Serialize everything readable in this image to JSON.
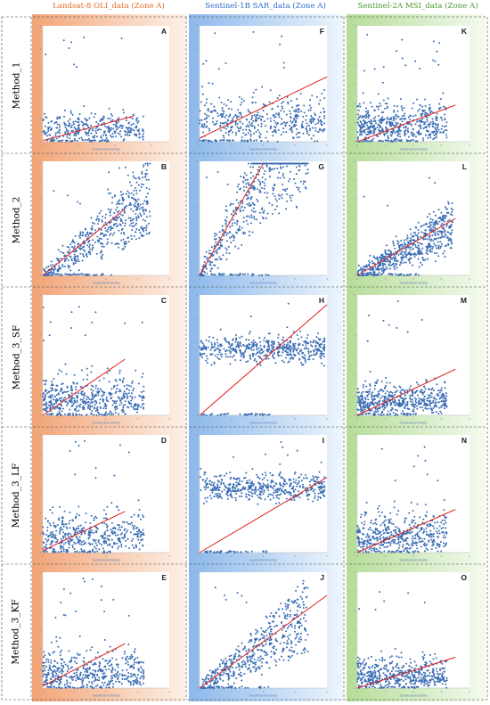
{
  "columns": [
    {
      "title": "Landsat-8 OLI_data (Zone A)",
      "color": "#e36c2c"
    },
    {
      "title": "Sentinel-1B SAR_data (Zone A)",
      "color": "#2f6fcc"
    },
    {
      "title": "Sentinel-2A MSI_data (Zone A)",
      "color": "#4b9a34"
    }
  ],
  "rows": [
    "Method_1",
    "Method_2",
    "Method_3_SF",
    "Method_3_LF",
    "Method_3_KF"
  ],
  "chart_data": [
    {
      "letter": "A",
      "type": "scatter",
      "xlabel": "Geostructural Density",
      "seed": 1,
      "n": 330,
      "xmax": 3.5,
      "ymax": 5.0,
      "mode": "lowcloud",
      "fit": [
        [
          0,
          0.05
        ],
        [
          2.5,
          1.1
        ]
      ]
    },
    {
      "letter": "B",
      "type": "scatter",
      "xlabel": "Geostructural Density",
      "seed": 2,
      "n": 520,
      "xmax": 4.0,
      "ymax": 6.0,
      "mode": "wedge",
      "fit": [
        [
          0,
          0.0
        ],
        [
          2.6,
          3.5
        ]
      ]
    },
    {
      "letter": "C",
      "type": "scatter",
      "xlabel": "Geostructural Density",
      "seed": 3,
      "n": 480,
      "xmax": 4.0,
      "ymax": 6.0,
      "mode": "cloud",
      "fit": [
        [
          0,
          0.0
        ],
        [
          2.6,
          2.8
        ]
      ]
    },
    {
      "letter": "D",
      "type": "scatter",
      "xlabel": "Geostructural Density",
      "seed": 4,
      "n": 430,
      "xmax": 4.0,
      "ymax": 6.0,
      "mode": "cloud",
      "fit": [
        [
          0,
          0.1
        ],
        [
          2.6,
          2.1
        ]
      ]
    },
    {
      "letter": "E",
      "type": "scatter",
      "xlabel": "Geostructural Density",
      "seed": 5,
      "n": 460,
      "xmax": 4.0,
      "ymax": 6.0,
      "mode": "cloud",
      "fit": [
        [
          0,
          0.1
        ],
        [
          2.6,
          2.3
        ]
      ]
    },
    {
      "letter": "F",
      "type": "scatter",
      "xlabel": "Geostructural Density",
      "seed": 6,
      "n": 430,
      "xmax": 4.0,
      "ymax": 5.0,
      "mode": "broad",
      "fit": [
        [
          0,
          0.15
        ],
        [
          4.0,
          2.8
        ]
      ]
    },
    {
      "letter": "G",
      "type": "scatter",
      "xlabel": "Geostructural Density",
      "seed": 7,
      "n": 560,
      "xmax": 4.0,
      "ymax": 5.0,
      "mode": "wedge",
      "fit": [
        [
          0,
          0.0
        ],
        [
          2.0,
          4.9
        ]
      ]
    },
    {
      "letter": "H",
      "type": "scatter",
      "xlabel": "Geostructural Density",
      "seed": 8,
      "n": 520,
      "xmax": 4.0,
      "ymax": 5.0,
      "mode": "band",
      "fit": [
        [
          0,
          0.0
        ],
        [
          4.0,
          4.6
        ]
      ]
    },
    {
      "letter": "I",
      "type": "scatter",
      "xlabel": "Geostructural Density",
      "seed": 9,
      "n": 500,
      "xmax": 4.0,
      "ymax": 5.0,
      "mode": "band",
      "fit": [
        [
          0,
          0.0
        ],
        [
          4.0,
          3.2
        ]
      ]
    },
    {
      "letter": "J",
      "type": "scatter",
      "xlabel": "Geostructural Density",
      "seed": 10,
      "n": 520,
      "xmax": 4.0,
      "ymax": 5.0,
      "mode": "wedge",
      "fit": [
        [
          0,
          0.0
        ],
        [
          4.0,
          4.0
        ]
      ]
    },
    {
      "letter": "K",
      "type": "scatter",
      "xlabel": "Geostructural Density",
      "seed": 11,
      "n": 500,
      "xmax": 4.0,
      "ymax": 6.0,
      "mode": "cloud",
      "fit": [
        [
          0,
          0.0
        ],
        [
          3.5,
          1.9
        ]
      ]
    },
    {
      "letter": "L",
      "type": "scatter",
      "xlabel": "Geostructural Density",
      "seed": 12,
      "n": 600,
      "xmax": 4.0,
      "ymax": 6.0,
      "mode": "wedge",
      "fit": [
        [
          0,
          0.0
        ],
        [
          3.5,
          3.0
        ]
      ]
    },
    {
      "letter": "M",
      "type": "scatter",
      "xlabel": "Geostructural Density",
      "seed": 13,
      "n": 520,
      "xmax": 4.0,
      "ymax": 6.0,
      "mode": "lowcloud",
      "fit": [
        [
          0,
          0.0
        ],
        [
          3.5,
          2.3
        ]
      ]
    },
    {
      "letter": "N",
      "type": "scatter",
      "xlabel": "Geostructural Density",
      "seed": 14,
      "n": 460,
      "xmax": 4.0,
      "ymax": 6.0,
      "mode": "cloud",
      "fit": [
        [
          0,
          0.0
        ],
        [
          3.5,
          2.2
        ]
      ]
    },
    {
      "letter": "O",
      "type": "scatter",
      "xlabel": "Geostructural Density",
      "seed": 15,
      "n": 480,
      "xmax": 4.0,
      "ymax": 6.0,
      "mode": "lowcloud",
      "fit": [
        [
          0,
          0.0
        ],
        [
          3.5,
          1.6
        ]
      ]
    }
  ]
}
